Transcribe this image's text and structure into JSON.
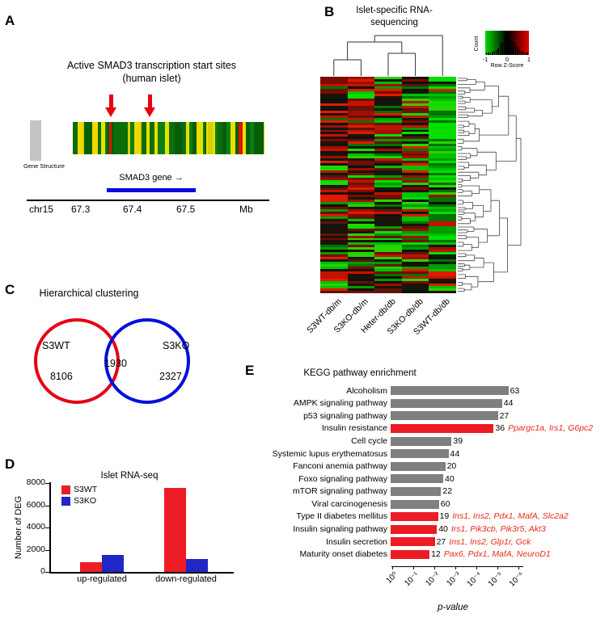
{
  "panels": {
    "A": {
      "label": "A",
      "title_line1": "Active SMAD3 transcription start sites",
      "title_line2": "(human islet)",
      "gene_structure_label": "Gene Structure",
      "gene_bar_label": "SMAD3 gene →",
      "axis_ticks": [
        "chr15",
        "67.3",
        "67.4",
        "67.5",
        "Mb"
      ],
      "colors": {
        "band_green": [
          "#0b6e0b",
          "#0a7f12",
          "#085e08"
        ],
        "band_yellow": [
          "#e8e100",
          "#f2d800",
          "#d8ce00"
        ],
        "band_red": "#dd1400",
        "arrow_red": "#e8000d",
        "gene_bar_blue": "#0008dd",
        "flank_gray": "#c4c4c4"
      }
    },
    "B": {
      "label": "B",
      "title_line1": "Islet-specific RNA-",
      "title_line2": "sequencing",
      "column_labels": [
        "S3WT-db/m",
        "S3KO-db/m",
        "Heter-db/db",
        "S3KO-db/db",
        "S3WT-db/db"
      ],
      "legend": {
        "count_label": "Count",
        "ticks": [
          "-1",
          "0",
          "1"
        ],
        "scale_label": "Row Z-Score"
      },
      "palette": {
        "red": [
          "#c41200",
          "#a00e00",
          "#e01a00",
          "#7c0a00",
          "#5c150c"
        ],
        "green": [
          "#00c000",
          "#009c00",
          "#00e000",
          "#007400",
          "#27d400"
        ],
        "dark": [
          "#120f0a",
          "#1b1208",
          "#0d190d",
          "#221005"
        ]
      },
      "legend_gradient": [
        "#00d800",
        "#000000",
        "#e80000"
      ]
    },
    "C": {
      "label": "C",
      "title": "Hierarchical clustering",
      "left_set_name": "S3WT",
      "left_unique": "8106",
      "overlap": "1930",
      "right_set_name": "S3KO",
      "right_unique": "2327",
      "left_color": "#e60012",
      "right_color": "#0010dd"
    },
    "D": {
      "label": "D"
    },
    "E": {
      "label": "E"
    }
  },
  "chart_data": [
    {
      "id": "panel-D",
      "type": "bar",
      "title": "Islet RNA-seq",
      "ylabel": "Number of DEG",
      "ylim": [
        0,
        8000
      ],
      "yticks": [
        0,
        2000,
        4000,
        6000,
        8000
      ],
      "categories": [
        "up-regulated",
        "down-regulated"
      ],
      "series": [
        {
          "name": "S3WT",
          "color": "#ee1c25",
          "values": [
            900,
            7600
          ]
        },
        {
          "name": "S3KO",
          "color": "#2126c4",
          "values": [
            1550,
            1150
          ]
        }
      ],
      "legend_position": "top-left",
      "grid": false
    },
    {
      "id": "panel-E",
      "type": "bar-horizontal",
      "title": "KEGG pathway enrichment",
      "xlabel": "p-value",
      "x_scale": "log10",
      "xticks": [
        "10⁰",
        "10⁻¹",
        "10⁻²",
        "10⁻³",
        "10⁻⁴",
        "10⁻⁵",
        "10⁻⁶"
      ],
      "xlim_exponents": [
        0,
        -6
      ],
      "bar_colors": {
        "default": "#7f7f7f",
        "highlight": "#ed1c24"
      },
      "gene_text_color": "#e8291c",
      "rows": [
        {
          "pathway": "Alcoholism",
          "count": 63,
          "neglog10_p": 5.6,
          "highlight": false,
          "genes": ""
        },
        {
          "pathway": "AMPK signaling pathway",
          "count": 44,
          "neglog10_p": 5.3,
          "highlight": false,
          "genes": ""
        },
        {
          "pathway": "p53 signaling pathway",
          "count": 27,
          "neglog10_p": 5.1,
          "highlight": false,
          "genes": ""
        },
        {
          "pathway": "Insulin resistance",
          "count": 36,
          "neglog10_p": 4.9,
          "highlight": true,
          "genes": "Ppargc1a, Irs1, G6pc2"
        },
        {
          "pathway": "Cell cycle",
          "count": 39,
          "neglog10_p": 2.9,
          "highlight": false,
          "genes": ""
        },
        {
          "pathway": "Systemic lupus erythematosus",
          "count": 44,
          "neglog10_p": 2.75,
          "highlight": false,
          "genes": ""
        },
        {
          "pathway": "Fanconi anemia pathway",
          "count": 20,
          "neglog10_p": 2.6,
          "highlight": false,
          "genes": ""
        },
        {
          "pathway": "Foxo signaling pathway",
          "count": 40,
          "neglog10_p": 2.5,
          "highlight": false,
          "genes": ""
        },
        {
          "pathway": "mTOR signaling pathway",
          "count": 22,
          "neglog10_p": 2.4,
          "highlight": false,
          "genes": ""
        },
        {
          "pathway": "Viral carcinogenesis",
          "count": 60,
          "neglog10_p": 2.3,
          "highlight": false,
          "genes": ""
        },
        {
          "pathway": "Type II diabetes mellitus",
          "count": 19,
          "neglog10_p": 2.25,
          "highlight": true,
          "genes": "Ins1, Ins2, Pdx1, MafA, Slc2a2"
        },
        {
          "pathway": "Insulin signaling pathway",
          "count": 40,
          "neglog10_p": 2.2,
          "highlight": true,
          "genes": "Irs1, Pik3cb, Pik3r5, Akt3"
        },
        {
          "pathway": "Insulin secretion",
          "count": 27,
          "neglog10_p": 2.1,
          "highlight": true,
          "genes": "Ins1, Ins2, Glp1r, Gck"
        },
        {
          "pathway": "Maturity onset diabetes",
          "count": 12,
          "neglog10_p": 1.85,
          "highlight": true,
          "genes": "Pax6, Pdx1, MafA, NeuroD1"
        }
      ]
    }
  ]
}
